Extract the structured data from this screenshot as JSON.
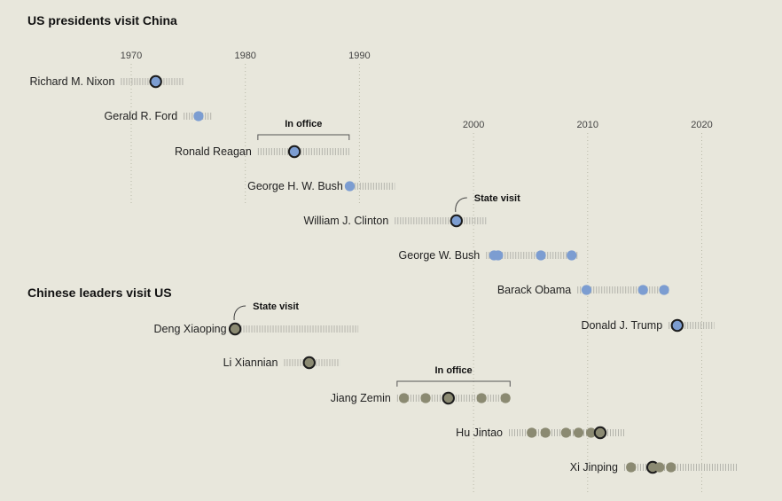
{
  "chart_data": {
    "type": "scatter",
    "title": "",
    "xlim": [
      1966,
      2024
    ],
    "colors": {
      "us": "#7c9dd1",
      "china": "#8b8a72",
      "state_visit_outline": "#1d1d1d",
      "term_hatch": "#b3b3ab",
      "grid": "#b9b9a8"
    },
    "axis_ticks_upper": [
      1970,
      1980,
      1990
    ],
    "axis_ticks_lower": [
      2000,
      2010,
      2020
    ],
    "sections": [
      {
        "title": "US presidents visit China",
        "rows": [
          {
            "name": "Richard M. Nixon",
            "term": [
              1969.1,
              1974.6
            ],
            "visits": [
              {
                "year": 1972.15,
                "state": true
              }
            ]
          },
          {
            "name": "Gerald R. Ford",
            "term": [
              1974.6,
              1977.1
            ],
            "visits": [
              {
                "year": 1975.9,
                "state": false
              }
            ]
          },
          {
            "name": "Ronald Reagan",
            "term": [
              1981.1,
              1989.1
            ],
            "visits": [
              {
                "year": 1984.3,
                "state": true
              }
            ]
          },
          {
            "name": "George H. W. Bush",
            "term": [
              1989.1,
              1993.1
            ],
            "visits": [
              {
                "year": 1989.15,
                "state": false
              }
            ]
          },
          {
            "name": "William J. Clinton",
            "term": [
              1993.1,
              2001.1
            ],
            "visits": [
              {
                "year": 1998.5,
                "state": true
              }
            ]
          },
          {
            "name": "George W. Bush",
            "term": [
              2001.1,
              2009.1
            ],
            "visits": [
              {
                "year": 2001.8,
                "state": false
              },
              {
                "year": 2002.15,
                "state": false
              },
              {
                "year": 2005.9,
                "state": false
              },
              {
                "year": 2008.6,
                "state": false
              }
            ]
          },
          {
            "name": "Barack Obama",
            "term": [
              2009.1,
              2017.1
            ],
            "visits": [
              {
                "year": 2009.9,
                "state": false
              },
              {
                "year": 2014.85,
                "state": false
              },
              {
                "year": 2016.7,
                "state": false
              }
            ]
          },
          {
            "name": "Donald J. Trump",
            "term": [
              2017.1,
              2021.1
            ],
            "visits": [
              {
                "year": 2017.85,
                "state": true
              }
            ]
          }
        ]
      },
      {
        "title": "Chinese leaders visit US",
        "rows": [
          {
            "name": "Deng Xiaoping",
            "term": [
              1978.9,
              1989.9
            ],
            "visits": [
              {
                "year": 1979.1,
                "state": true
              }
            ]
          },
          {
            "name": "Li Xiannian",
            "term": [
              1983.4,
              1988.3
            ],
            "visits": [
              {
                "year": 1985.6,
                "state": true
              }
            ]
          },
          {
            "name": "Jiang Zemin",
            "term": [
              1993.3,
              2003.2
            ],
            "visits": [
              {
                "year": 1993.9,
                "state": false
              },
              {
                "year": 1995.8,
                "state": false
              },
              {
                "year": 1997.8,
                "state": true
              },
              {
                "year": 2000.7,
                "state": false
              },
              {
                "year": 2002.8,
                "state": false
              }
            ]
          },
          {
            "name": "Hu Jintao",
            "term": [
              2003.1,
              2013.2
            ],
            "visits": [
              {
                "year": 2005.1,
                "state": false
              },
              {
                "year": 2006.3,
                "state": false
              },
              {
                "year": 2008.1,
                "state": false
              },
              {
                "year": 2009.2,
                "state": false
              },
              {
                "year": 2010.3,
                "state": false
              },
              {
                "year": 2011.1,
                "state": true
              }
            ]
          },
          {
            "name": "Xi Jinping",
            "term": [
              2013.2,
              2023.2
            ],
            "visits": [
              {
                "year": 2013.8,
                "state": false
              },
              {
                "year": 2015.7,
                "state": true
              },
              {
                "year": 2016.3,
                "state": false
              },
              {
                "year": 2017.3,
                "state": false
              }
            ]
          }
        ]
      }
    ],
    "annotations": [
      {
        "text": "In office",
        "kind": "bracket",
        "row": "Ronald Reagan",
        "range": [
          1981.1,
          1989.1
        ]
      },
      {
        "text": "State visit",
        "kind": "callout",
        "row": "William J. Clinton",
        "year": 1998.5
      },
      {
        "text": "State visit",
        "kind": "callout",
        "row": "Deng Xiaoping",
        "year": 1979.1
      },
      {
        "text": "In office",
        "kind": "bracket",
        "row": "Jiang Zemin",
        "range": [
          1993.3,
          2003.2
        ]
      }
    ]
  }
}
